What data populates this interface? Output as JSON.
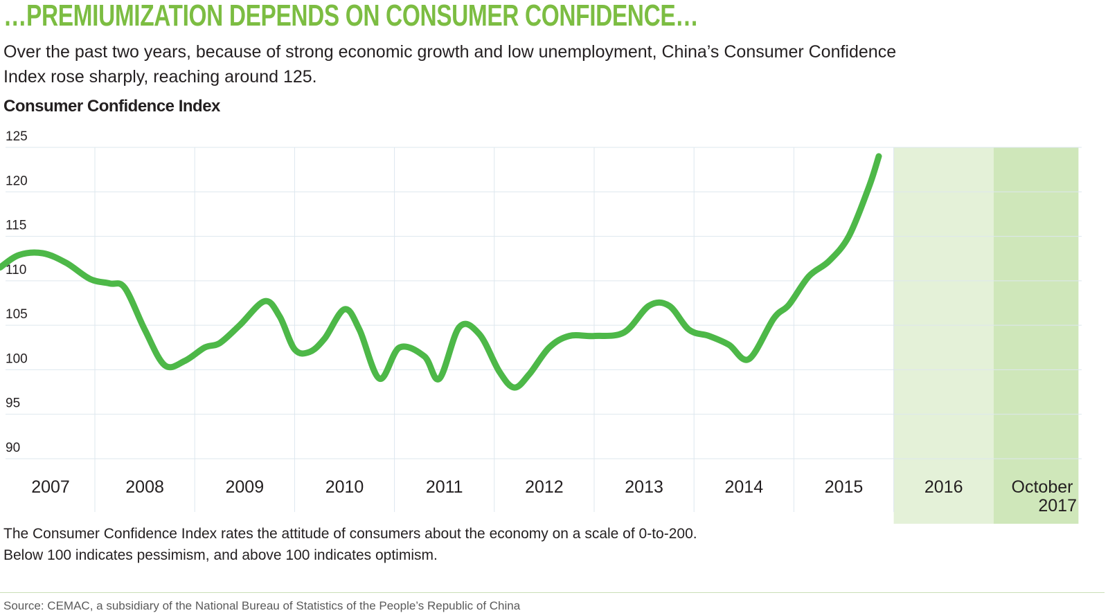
{
  "headline": "…PREMIUMIZATION DEPENDS ON CONSUMER CONFIDENCE…",
  "subtitle": "Over the past two years, because of strong economic growth and low unemployment, China’s Consumer Confidence Index rose sharply, reaching around 125.",
  "note_line1": "The Consumer Confidence Index rates the attitude of consumers about the economy on a scale of 0-to-200.",
  "note_line2": "Below 100 indicates pessimism, and above 100 indicates optimism.",
  "source": "Source: CEMAC, a subsidiary of the National Bureau of Statistics of the People’s Republic of China",
  "colors": {
    "headline": "#7cbd42",
    "line": "#4db848",
    "highlight_2016": "#e4f1d8",
    "highlight_2017": "#cfe7ba",
    "grid": "#dde7ee"
  },
  "chart_data": {
    "type": "line",
    "title": "Consumer Confidence Index",
    "xlabel": "",
    "ylabel": "",
    "ylim": [
      90,
      125
    ],
    "xlim": [
      2007.0,
      2017.85
    ],
    "yticks": [
      125,
      120,
      115,
      110,
      105,
      100,
      95,
      90
    ],
    "xticks": [
      {
        "label": "2007",
        "x": 2007
      },
      {
        "label": "2008",
        "x": 2008
      },
      {
        "label": "2009",
        "x": 2009
      },
      {
        "label": "2010",
        "x": 2010
      },
      {
        "label": "2011",
        "x": 2011
      },
      {
        "label": "2012",
        "x": 2012
      },
      {
        "label": "2013",
        "x": 2013
      },
      {
        "label": "2014",
        "x": 2014
      },
      {
        "label": "2015",
        "x": 2015
      },
      {
        "label": "2016",
        "x": 2016
      },
      {
        "label": "October",
        "label2": "2017",
        "x": 2017
      }
    ],
    "highlights": [
      {
        "from": 2016.0,
        "to": 2017.0,
        "label": "2016"
      },
      {
        "from": 2017.0,
        "to": 2017.85,
        "label": "October 2017"
      }
    ],
    "grid": true,
    "series": [
      {
        "name": "Consumer Confidence Index",
        "points": [
          [
            2007.0,
            111.5
          ],
          [
            2007.2,
            112.9
          ],
          [
            2007.45,
            113.1
          ],
          [
            2007.7,
            112.0
          ],
          [
            2007.95,
            110.2
          ],
          [
            2008.15,
            109.7
          ],
          [
            2008.3,
            109.2
          ],
          [
            2008.5,
            104.5
          ],
          [
            2008.7,
            100.5
          ],
          [
            2008.9,
            101.0
          ],
          [
            2009.1,
            102.5
          ],
          [
            2009.25,
            103.0
          ],
          [
            2009.45,
            105.0
          ],
          [
            2009.7,
            107.7
          ],
          [
            2009.85,
            106.0
          ],
          [
            2010.0,
            102.3
          ],
          [
            2010.15,
            102.0
          ],
          [
            2010.3,
            103.5
          ],
          [
            2010.5,
            106.8
          ],
          [
            2010.65,
            104.5
          ],
          [
            2010.85,
            99.0
          ],
          [
            2011.05,
            102.5
          ],
          [
            2011.3,
            101.5
          ],
          [
            2011.45,
            99.0
          ],
          [
            2011.65,
            104.8
          ],
          [
            2011.85,
            104.0
          ],
          [
            2012.05,
            99.8
          ],
          [
            2012.2,
            98.0
          ],
          [
            2012.35,
            99.5
          ],
          [
            2012.55,
            102.5
          ],
          [
            2012.75,
            103.8
          ],
          [
            2013.0,
            103.8
          ],
          [
            2013.3,
            104.2
          ],
          [
            2013.55,
            107.2
          ],
          [
            2013.75,
            107.2
          ],
          [
            2013.95,
            104.5
          ],
          [
            2014.15,
            103.8
          ],
          [
            2014.35,
            102.8
          ],
          [
            2014.55,
            101.2
          ],
          [
            2014.8,
            105.8
          ],
          [
            2014.95,
            107.3
          ],
          [
            2015.15,
            110.5
          ],
          [
            2015.35,
            112.2
          ],
          [
            2015.55,
            115.0
          ],
          [
            2015.75,
            120.5
          ],
          [
            2015.85,
            124.0
          ]
        ]
      }
    ]
  }
}
